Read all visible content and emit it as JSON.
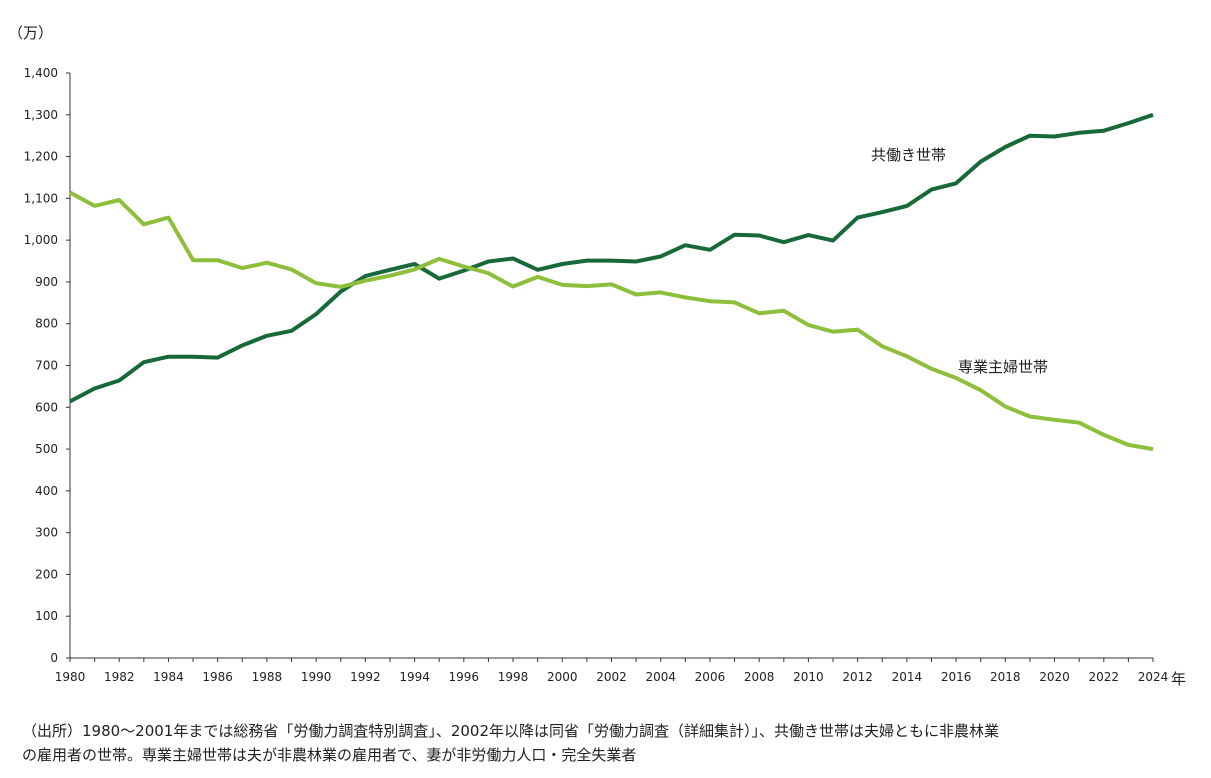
{
  "chart_data": {
    "type": "line",
    "unit_label": "（万）",
    "x_unit": "年",
    "x": [
      1980,
      1981,
      1982,
      1983,
      1984,
      1985,
      1986,
      1987,
      1988,
      1989,
      1990,
      1991,
      1992,
      1993,
      1994,
      1995,
      1996,
      1997,
      1998,
      1999,
      2000,
      2001,
      2002,
      2003,
      2004,
      2005,
      2006,
      2007,
      2008,
      2009,
      2010,
      2011,
      2012,
      2013,
      2014,
      2015,
      2016,
      2017,
      2018,
      2019,
      2020,
      2021,
      2022,
      2023,
      2024
    ],
    "xticks": [
      1980,
      1982,
      1984,
      1986,
      1988,
      1990,
      1992,
      1994,
      1996,
      1998,
      2000,
      2002,
      2004,
      2006,
      2008,
      2010,
      2012,
      2014,
      2016,
      2018,
      2020,
      2022,
      2024
    ],
    "yticks": [
      "0",
      "100",
      "200",
      "300",
      "400",
      "500",
      "600",
      "700",
      "800",
      "900",
      "1,000",
      "1,100",
      "1,200",
      "1,300",
      "1,400"
    ],
    "ylim": [
      0,
      1400
    ],
    "xlim": [
      1980,
      2024
    ],
    "series": [
      {
        "name": "共働き世帯",
        "color": "#17693a",
        "values": [
          614,
          645,
          664,
          708,
          721,
          721,
          719,
          748,
          771,
          783,
          823,
          877,
          914,
          929,
          943,
          908,
          927,
          949,
          956,
          929,
          943,
          951,
          951,
          949,
          961,
          988,
          977,
          1013,
          1011,
          995,
          1012,
          999,
          1054,
          1067,
          1082,
          1121,
          1136,
          1188,
          1223,
          1250,
          1248,
          1257,
          1262,
          1280,
          1300
        ]
      },
      {
        "name": "専業主婦世帯",
        "color": "#8dbf3b",
        "values": [
          1114,
          1082,
          1096,
          1038,
          1054,
          952,
          952,
          933,
          946,
          930,
          897,
          888,
          903,
          915,
          930,
          955,
          937,
          921,
          889,
          912,
          893,
          890,
          894,
          870,
          875,
          863,
          854,
          851,
          825,
          831,
          797,
          781,
          786,
          746,
          722,
          692,
          670,
          641,
          602,
          578,
          570,
          563,
          534,
          510,
          500
        ]
      }
    ],
    "grid": false
  },
  "note": {
    "line1": "（出所）1980～2001年までは総務省「労働力調査特別調査」、2002年以降は同省「労働力調査（詳細集計）」、共働き世帯は夫婦ともに非農林業",
    "line2": "の雇用者の世帯。専業主婦世帯は夫が非農林業の雇用者で、妻が非労働力人口・完全失業者"
  }
}
